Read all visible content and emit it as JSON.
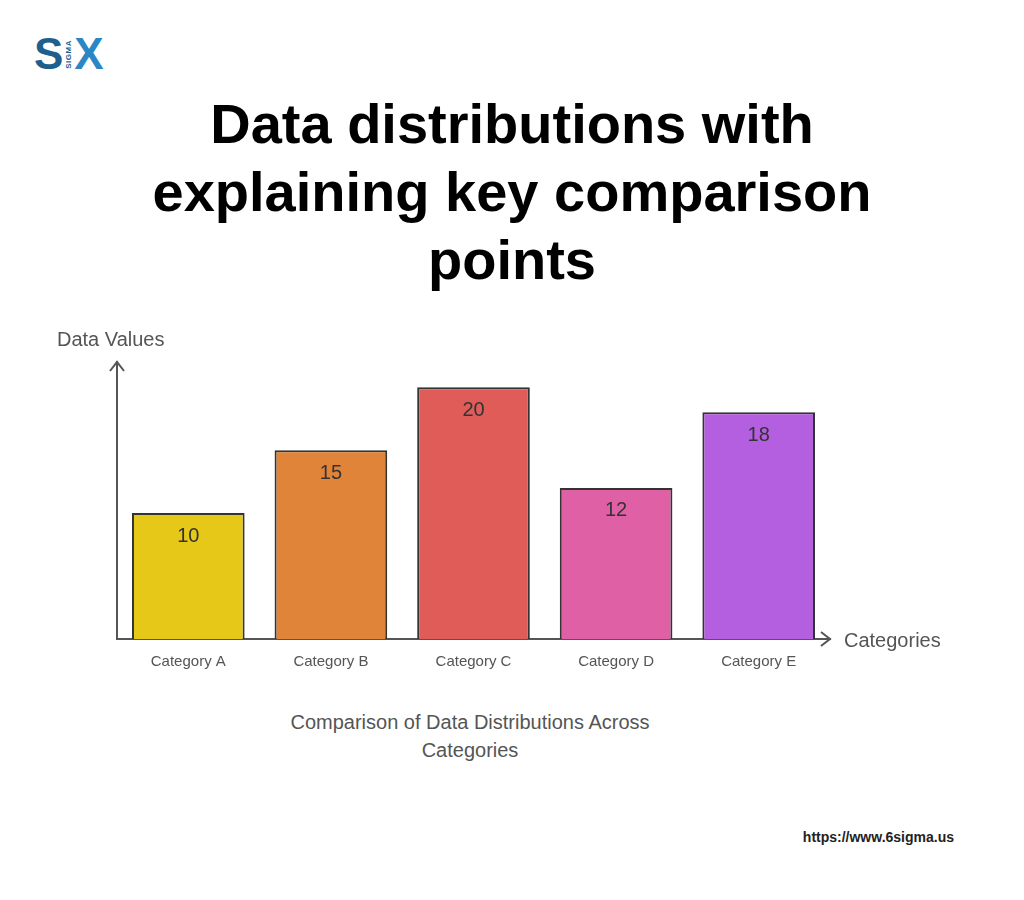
{
  "chart_data": {
    "type": "bar",
    "title": "Data distributions with explaining key comparison points",
    "x_label": "Categories",
    "y_label": "Data Values",
    "categories": [
      "Category A",
      "Category B",
      "Category C",
      "Category D",
      "Category E"
    ],
    "values": [
      10,
      15,
      20,
      12,
      18
    ],
    "colors": [
      "#e5c818",
      "#e0843a",
      "#e05c58",
      "#e060a6",
      "#b45ee0"
    ],
    "ylim": [
      0,
      22
    ],
    "tick_labels": "x",
    "data_labels": true,
    "grid": false
  },
  "page": {
    "logo": {
      "letters": [
        "S",
        "X"
      ],
      "mark": "SIGMA"
    },
    "caption": "Comparison of Data Distributions Across Categories",
    "url": "https://www.6sigma.us"
  }
}
